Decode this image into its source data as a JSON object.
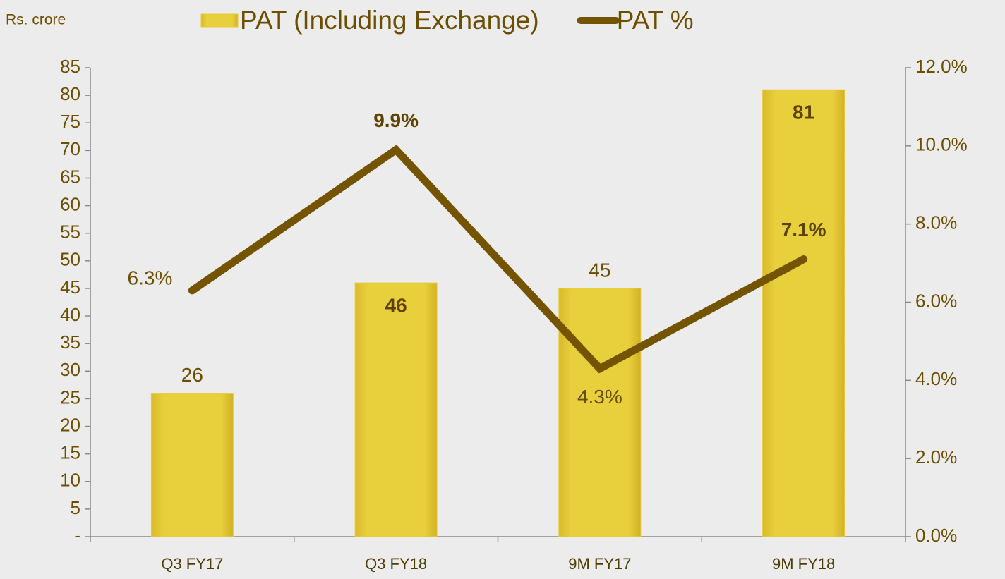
{
  "chart_data": {
    "type": "bar_line",
    "y_label": "Rs. crore",
    "categories": [
      "Q3 FY17",
      "Q3 FY18",
      "9M FY17",
      "9M FY18"
    ],
    "series": [
      {
        "name": "PAT (Including Exchange)",
        "type": "bar",
        "color": "#e6cb38",
        "values": [
          26,
          46,
          45,
          81
        ]
      },
      {
        "name": "PAT %",
        "type": "line",
        "axis": "y2",
        "color": "#755400",
        "values": [
          6.3,
          9.9,
          4.3,
          7.1
        ],
        "value_labels": [
          "6.3%",
          "9.9%",
          "4.3%",
          "7.1%"
        ]
      }
    ],
    "ylim": [
      0,
      85
    ],
    "yticks": [
      {
        "value": 0,
        "label": "-"
      },
      5,
      10,
      15,
      20,
      25,
      30,
      35,
      40,
      45,
      50,
      55,
      60,
      65,
      70,
      75,
      80,
      85
    ],
    "y2lim": [
      0,
      12
    ],
    "y2ticks": [
      {
        "value": 0,
        "label": "0.0%"
      },
      {
        "value": 2,
        "label": "2.0%"
      },
      {
        "value": 4,
        "label": "4.0%"
      },
      {
        "value": 6,
        "label": "6.0%"
      },
      {
        "value": 8,
        "label": "8.0%"
      },
      {
        "value": 10,
        "label": "10.0%"
      },
      {
        "value": 12,
        "label": "12.0%"
      }
    ],
    "legend": "top",
    "grid": false
  }
}
